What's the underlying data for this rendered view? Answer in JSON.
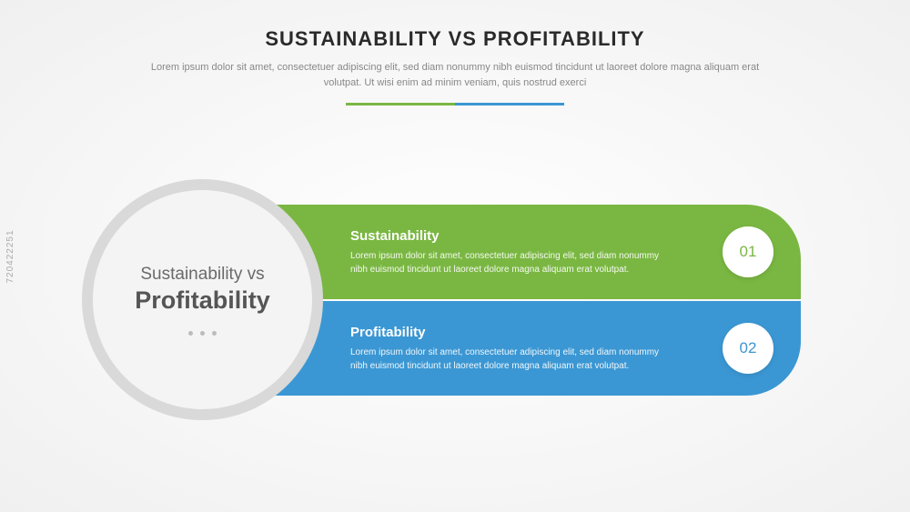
{
  "header": {
    "title": "SUSTAINABILITY VS PROFITABILITY",
    "subtitle": "Lorem ipsum dolor sit amet, consectetuer adipiscing elit, sed diam nonummy nibh euismod tincidunt ut laoreet dolore magna aliquam erat volutpat. Ut wisi enim ad minim veniam, quis nostrud exerci"
  },
  "divider": {
    "left_color": "#7ab742",
    "right_color": "#3b97d3"
  },
  "circle": {
    "line1": "Sustainability vs",
    "line2": "Profitability",
    "bg": "#f4f4f4",
    "border": "#d9d9d9"
  },
  "bars": [
    {
      "title": "Sustainability",
      "desc": "Lorem ipsum dolor sit amet, consectetuer adipiscing elit, sed diam nonummy nibh euismod tincidunt ut laoreet dolore magna aliquam erat volutpat.",
      "number": "01",
      "bg_color": "#7ab742",
      "num_color": "#7ab742"
    },
    {
      "title": "Profitability",
      "desc": "Lorem ipsum dolor sit amet, consectetuer adipiscing elit, sed diam nonummy nibh euismod tincidunt ut laoreet dolore magna aliquam erat volutpat.",
      "number": "02",
      "bg_color": "#3b97d3",
      "num_color": "#3b97d3"
    }
  ],
  "watermark": "720422251"
}
